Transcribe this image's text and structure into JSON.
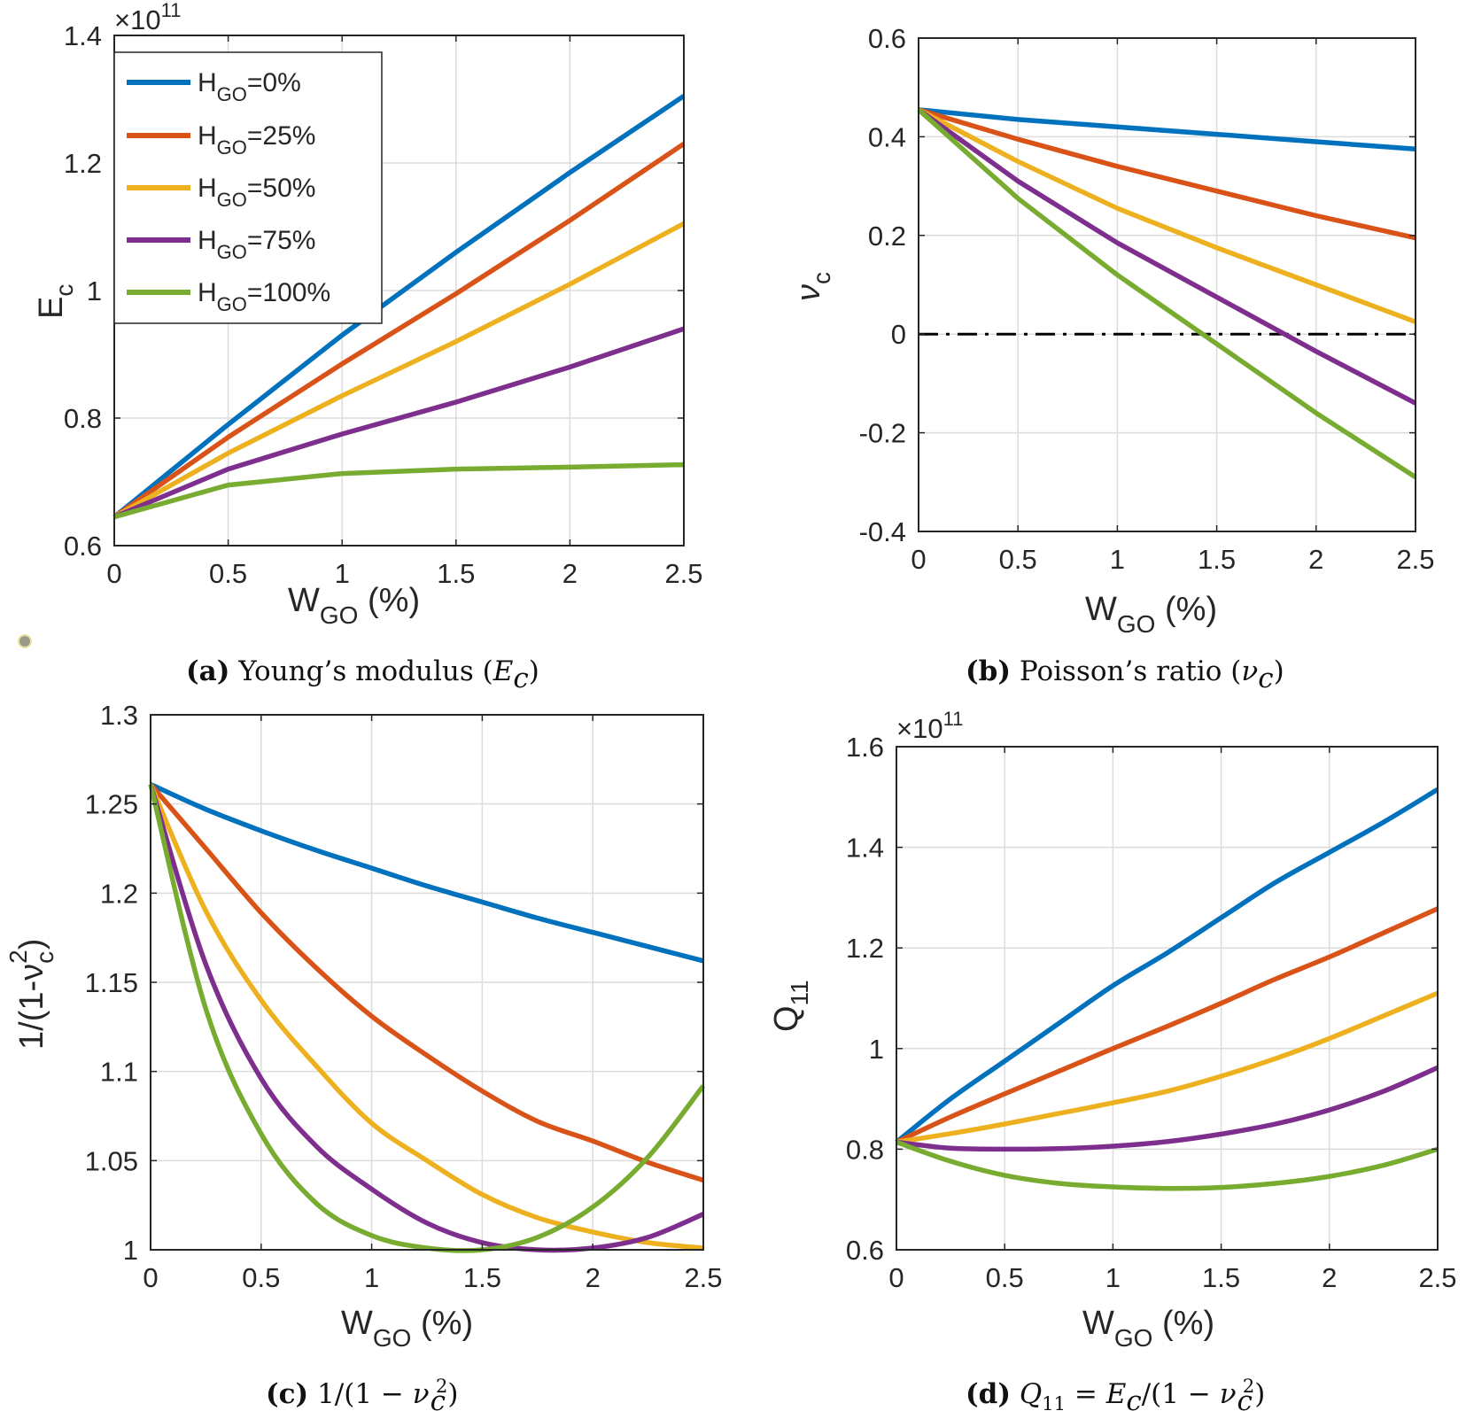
{
  "figure": {
    "colors": {
      "h0": "#0072BD",
      "h25": "#D95319",
      "h50": "#EDB120",
      "h75": "#7E2F8E",
      "h100": "#77AC30",
      "zero_line": "#000000",
      "grid": "#DCDCDC",
      "axis": "#262626"
    }
  },
  "chart_data": [
    {
      "id": "a",
      "type": "line",
      "caption": {
        "letter": "(a)",
        "text": "Young’s modulus (",
        "math": "E",
        "math_sub": "c",
        "close": ")"
      },
      "multiplier": {
        "base": "×10",
        "exp": "11"
      },
      "xlabel": {
        "main": "W",
        "sub": "GO",
        "rest": " (%)"
      },
      "ylabel": {
        "main": "E",
        "sub": "c"
      },
      "xlim": [
        0,
        2.5
      ],
      "ylim": [
        0.6,
        1.4
      ],
      "xticks": [
        0,
        0.5,
        1,
        1.5,
        2,
        2.5
      ],
      "xticklabels": [
        "0",
        "0.5",
        "1",
        "1.5",
        "2",
        "2.5"
      ],
      "yticks": [
        0.6,
        0.8,
        1.0,
        1.2,
        1.4
      ],
      "yticklabels": [
        "0.6",
        "0.8",
        "1",
        "1.2",
        "1.4"
      ],
      "grid": true,
      "legend_position": "top-left",
      "legend": [
        {
          "main": "H",
          "sub": "GO",
          "rest": "=0%",
          "color": "h0"
        },
        {
          "main": "H",
          "sub": "GO",
          "rest": "=25%",
          "color": "h25"
        },
        {
          "main": "H",
          "sub": "GO",
          "rest": "=50%",
          "color": "h50"
        },
        {
          "main": "H",
          "sub": "GO",
          "rest": "=75%",
          "color": "h75"
        },
        {
          "main": "H",
          "sub": "GO",
          "rest": "=100%",
          "color": "h100"
        }
      ],
      "x": [
        0,
        0.5,
        1,
        1.5,
        2,
        2.5
      ],
      "series": [
        {
          "name": "H_GO=0%",
          "color": "h0",
          "values": [
            0.645,
            0.79,
            0.93,
            1.06,
            1.185,
            1.305
          ]
        },
        {
          "name": "H_GO=25%",
          "color": "h25",
          "values": [
            0.645,
            0.77,
            0.885,
            0.995,
            1.11,
            1.23
          ]
        },
        {
          "name": "H_GO=50%",
          "color": "h50",
          "values": [
            0.645,
            0.745,
            0.835,
            0.92,
            1.01,
            1.105
          ]
        },
        {
          "name": "H_GO=75%",
          "color": "h75",
          "values": [
            0.645,
            0.72,
            0.775,
            0.825,
            0.88,
            0.94
          ]
        },
        {
          "name": "H_GO=100%",
          "color": "h100",
          "values": [
            0.645,
            0.695,
            0.713,
            0.72,
            0.723,
            0.727
          ]
        }
      ]
    },
    {
      "id": "b",
      "type": "line",
      "caption": {
        "letter": "(b)",
        "text": "Poisson’s ratio   (",
        "math": "ν",
        "math_sub": "c",
        "close": ")"
      },
      "xlabel": {
        "main": "W",
        "sub": "GO",
        "rest": " (%)"
      },
      "ylabel": {
        "main": "ν",
        "sub": "c"
      },
      "xlim": [
        0,
        2.5
      ],
      "ylim": [
        -0.4,
        0.6
      ],
      "xticks": [
        0,
        0.5,
        1,
        1.5,
        2,
        2.5
      ],
      "xticklabels": [
        "0",
        "0.5",
        "1",
        "1.5",
        "2",
        "2.5"
      ],
      "yticks": [
        -0.4,
        -0.2,
        0,
        0.2,
        0.4,
        0.6
      ],
      "yticklabels": [
        "-0.4",
        "-0.2",
        "0",
        "0.2",
        "0.4",
        "0.6"
      ],
      "grid": true,
      "reference_line": {
        "y": 0,
        "style": "dash-dot",
        "color": "zero_line"
      },
      "x": [
        0,
        0.5,
        1,
        1.5,
        2,
        2.5
      ],
      "series": [
        {
          "name": "H_GO=0%",
          "color": "h0",
          "values": [
            0.455,
            0.435,
            0.42,
            0.405,
            0.39,
            0.375
          ]
        },
        {
          "name": "H_GO=25%",
          "color": "h25",
          "values": [
            0.455,
            0.395,
            0.34,
            0.29,
            0.24,
            0.195
          ]
        },
        {
          "name": "H_GO=50%",
          "color": "h50",
          "values": [
            0.455,
            0.35,
            0.255,
            0.175,
            0.1,
            0.025
          ]
        },
        {
          "name": "H_GO=75%",
          "color": "h75",
          "values": [
            0.455,
            0.31,
            0.185,
            0.075,
            -0.035,
            -0.14
          ]
        },
        {
          "name": "H_GO=100%",
          "color": "h100",
          "values": [
            0.455,
            0.275,
            0.12,
            -0.02,
            -0.16,
            -0.29
          ]
        }
      ]
    },
    {
      "id": "c",
      "type": "line",
      "caption": {
        "letter": "(c)",
        "text": "1/(1 − ",
        "math": "ν",
        "math_sub": "c",
        "math_sup": "2",
        "close": ")"
      },
      "xlabel": {
        "main": "W",
        "sub": "GO",
        "rest": " (%)"
      },
      "ylabel": {
        "main": "1/(1-ν",
        "sub": "c",
        "sup": "2",
        "rest": ")"
      },
      "xlim": [
        0,
        2.5
      ],
      "ylim": [
        1.0,
        1.3
      ],
      "xticks": [
        0,
        0.5,
        1,
        1.5,
        2,
        2.5
      ],
      "xticklabels": [
        "0",
        "0.5",
        "1",
        "1.5",
        "2",
        "2.5"
      ],
      "yticks": [
        1.0,
        1.05,
        1.1,
        1.15,
        1.2,
        1.25,
        1.3
      ],
      "yticklabels": [
        "1",
        "1.05",
        "1.1",
        "1.15",
        "1.2",
        "1.25",
        "1.3"
      ],
      "grid": true,
      "x": [
        0,
        0.25,
        0.5,
        0.75,
        1,
        1.25,
        1.5,
        1.75,
        2,
        2.25,
        2.5
      ],
      "series": [
        {
          "name": "H_GO=0%",
          "color": "h0",
          "values": [
            1.261,
            1.247,
            1.235,
            1.224,
            1.214,
            1.204,
            1.195,
            1.186,
            1.178,
            1.17,
            1.162
          ]
        },
        {
          "name": "H_GO=25%",
          "color": "h25",
          "values": [
            1.261,
            1.225,
            1.189,
            1.158,
            1.131,
            1.109,
            1.089,
            1.072,
            1.061,
            1.049,
            1.039
          ]
        },
        {
          "name": "H_GO=50%",
          "color": "h50",
          "values": [
            1.261,
            1.19,
            1.14,
            1.103,
            1.071,
            1.05,
            1.031,
            1.018,
            1.01,
            1.004,
            1.001
          ]
        },
        {
          "name": "H_GO=75%",
          "color": "h75",
          "values": [
            1.261,
            1.16,
            1.096,
            1.058,
            1.034,
            1.015,
            1.004,
            1.0,
            1.001,
            1.007,
            1.02
          ]
        },
        {
          "name": "H_GO=100%",
          "color": "h100",
          "values": [
            1.261,
            1.135,
            1.065,
            1.026,
            1.008,
            1.001,
            1.0,
            1.007,
            1.024,
            1.052,
            1.092
          ]
        }
      ]
    },
    {
      "id": "d",
      "type": "line",
      "caption": {
        "letter": "(d)",
        "math": "Q",
        "math_sub": "11",
        "text": " = ",
        "math2": "E",
        "math2_sub": "c",
        "text2": "/(1 − ",
        "math3": "ν",
        "math3_sub": "c",
        "math3_sup": "2",
        "close": ")"
      },
      "multiplier": {
        "base": "×10",
        "exp": "11"
      },
      "xlabel": {
        "main": "W",
        "sub": "GO",
        "rest": " (%)"
      },
      "ylabel": {
        "main": "Q",
        "sub": "11"
      },
      "xlim": [
        0,
        2.5
      ],
      "ylim": [
        0.6,
        1.6
      ],
      "xticks": [
        0,
        0.5,
        1,
        1.5,
        2,
        2.5
      ],
      "xticklabels": [
        "0",
        "0.5",
        "1",
        "1.5",
        "2",
        "2.5"
      ],
      "yticks": [
        0.6,
        0.8,
        1.0,
        1.2,
        1.4,
        1.6
      ],
      "yticklabels": [
        "0.6",
        "0.8",
        "1",
        "1.2",
        "1.4",
        "1.6"
      ],
      "grid": true,
      "x": [
        0,
        0.25,
        0.5,
        0.75,
        1,
        1.25,
        1.5,
        1.75,
        2,
        2.25,
        2.5
      ],
      "series": [
        {
          "name": "H_GO=0%",
          "color": "h0",
          "values": [
            0.814,
            0.9,
            0.975,
            1.05,
            1.125,
            1.19,
            1.26,
            1.33,
            1.39,
            1.45,
            1.515
          ]
        },
        {
          "name": "H_GO=25%",
          "color": "h25",
          "values": [
            0.814,
            0.864,
            0.91,
            0.955,
            1.0,
            1.044,
            1.09,
            1.138,
            1.182,
            1.23,
            1.278
          ]
        },
        {
          "name": "H_GO=50%",
          "color": "h50",
          "values": [
            0.814,
            0.831,
            0.85,
            0.871,
            0.892,
            0.915,
            0.945,
            0.98,
            1.02,
            1.065,
            1.11
          ]
        },
        {
          "name": "H_GO=75%",
          "color": "h75",
          "values": [
            0.814,
            0.802,
            0.8,
            0.801,
            0.806,
            0.815,
            0.83,
            0.85,
            0.878,
            0.915,
            0.962
          ]
        },
        {
          "name": "H_GO=100%",
          "color": "h100",
          "values": [
            0.814,
            0.776,
            0.748,
            0.732,
            0.725,
            0.722,
            0.724,
            0.732,
            0.746,
            0.768,
            0.8
          ]
        }
      ]
    }
  ]
}
